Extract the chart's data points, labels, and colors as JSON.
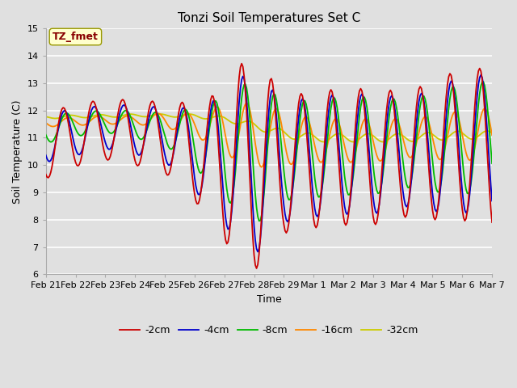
{
  "title": "Tonzi Soil Temperatures Set C",
  "xlabel": "Time",
  "ylabel": "Soil Temperature (C)",
  "annotation": "TZ_fmet",
  "ylim": [
    6.0,
    15.0
  ],
  "yticks": [
    6.0,
    7.0,
    8.0,
    9.0,
    10.0,
    11.0,
    12.0,
    13.0,
    14.0,
    15.0
  ],
  "xtick_labels": [
    "Feb 21",
    "Feb 22",
    "Feb 23",
    "Feb 24",
    "Feb 25",
    "Feb 26",
    "Feb 27",
    "Feb 28",
    "Feb 29",
    "Mar 1",
    "Mar 2",
    "Mar 3",
    "Mar 4",
    "Mar 5",
    "Mar 6",
    "Mar 7"
  ],
  "legend_labels": [
    "-2cm",
    "-4cm",
    "-8cm",
    "-16cm",
    "-32cm"
  ],
  "line_colors": [
    "#cc0000",
    "#0000cc",
    "#00bb00",
    "#ff8800",
    "#cccc00"
  ],
  "background_color": "#e0e0e0",
  "grid_color": "#ffffff",
  "annotation_bg": "#ffffcc",
  "annotation_fg": "#880000",
  "title_fontsize": 11,
  "label_fontsize": 9,
  "tick_fontsize": 8,
  "legend_fontsize": 9,
  "figwidth": 6.4,
  "figheight": 4.8,
  "dpi": 100
}
